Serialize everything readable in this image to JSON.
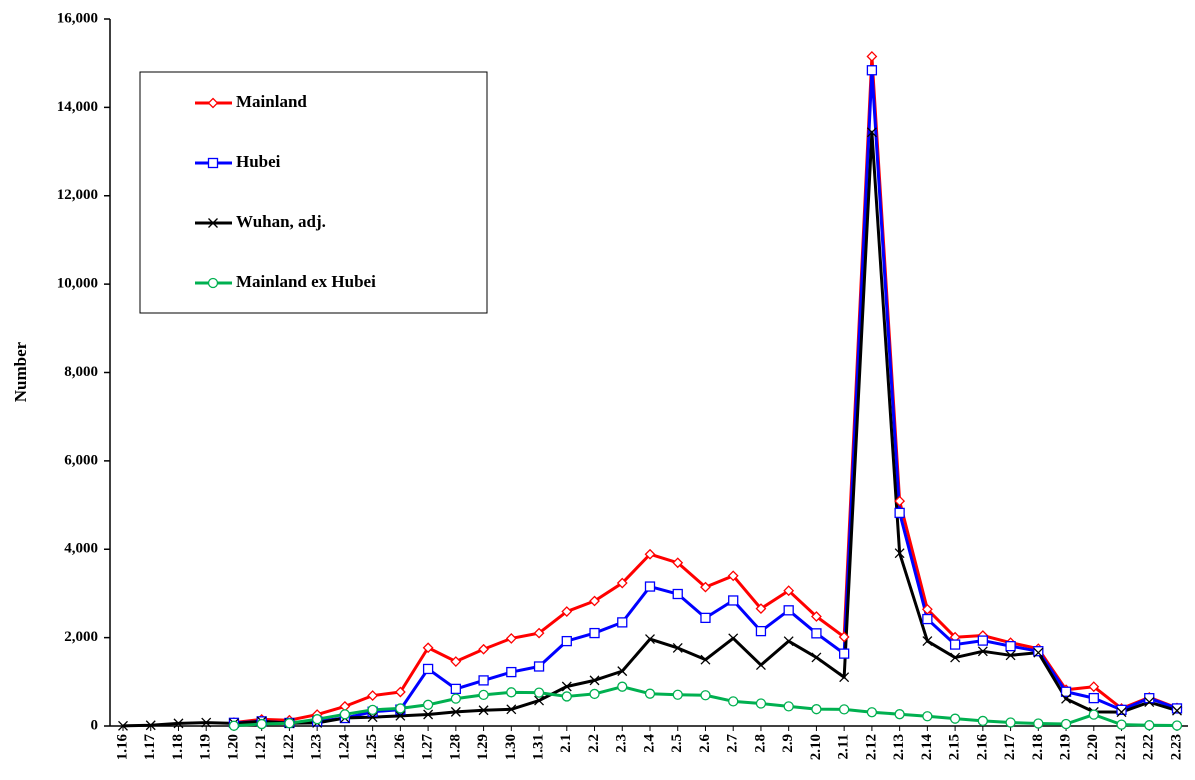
{
  "chart_data": {
    "type": "line",
    "y_label": "Number",
    "categories": [
      "1.16",
      "1.17",
      "1.18",
      "1.19",
      "1.20",
      "1.21",
      "1.22",
      "1.23",
      "1.24",
      "1.25",
      "1.26",
      "1.27",
      "1.28",
      "1.29",
      "1.30",
      "1.31",
      "2.1",
      "2.2",
      "2.3",
      "2.4",
      "2.5",
      "2.6",
      "2.7",
      "2.8",
      "2.9",
      "2.10",
      "2.11",
      "2.12",
      "2.13",
      "2.14",
      "2.15",
      "2.16",
      "2.17",
      "2.18",
      "2.19",
      "2.20",
      "2.21",
      "2.22",
      "2.23"
    ],
    "series": [
      {
        "name": "Mainland",
        "color": "#ff0000",
        "marker": "diamond",
        "values": [
          null,
          null,
          null,
          null,
          77,
          149,
          131,
          259,
          444,
          688,
          769,
          1771,
          1459,
          1737,
          1982,
          2102,
          2590,
          2829,
          3235,
          3887,
          3694,
          3143,
          3399,
          2656,
          3062,
          2478,
          2015,
          15152,
          5090,
          2641,
          2009,
          2048,
          1886,
          1749,
          820,
          889,
          397,
          648,
          409
        ]
      },
      {
        "name": "Hubei",
        "color": "#0000ff",
        "marker": "square",
        "values": [
          null,
          null,
          null,
          null,
          72,
          105,
          69,
          105,
          180,
          323,
          371,
          1291,
          840,
          1032,
          1220,
          1347,
          1921,
          2103,
          2345,
          3156,
          2987,
          2447,
          2841,
          2147,
          2618,
          2097,
          1638,
          14840,
          4823,
          2420,
          1843,
          1933,
          1807,
          1693,
          775,
          631,
          366,
          630,
          398
        ]
      },
      {
        "name": "Wuhan, adj.",
        "color": "#000000",
        "marker": "x",
        "values": [
          4,
          17,
          59,
          77,
          60,
          105,
          62,
          70,
          180,
          200,
          230,
          260,
          320,
          356,
          378,
          576,
          894,
          1033,
          1242,
          1967,
          1766,
          1501,
          1985,
          1379,
          1920,
          1552,
          1104,
          13436,
          3910,
          1923,
          1548,
          1690,
          1600,
          1660,
          615,
          319,
          314,
          541,
          348
        ]
      },
      {
        "name": "Mainland ex Hubei",
        "color": "#00b050",
        "marker": "circle",
        "values": [
          null,
          null,
          null,
          null,
          5,
          44,
          62,
          154,
          264,
          365,
          398,
          480,
          619,
          705,
          762,
          755,
          669,
          726,
          890,
          731,
          707,
          696,
          558,
          509,
          444,
          381,
          377,
          312,
          267,
          221,
          166,
          115,
          79,
          56,
          45,
          258,
          31,
          18,
          11
        ]
      }
    ],
    "ylim": [
      0,
      16000
    ],
    "yticks": [
      0,
      {
        "value": 2000,
        "label": "2,000"
      },
      {
        "value": 4000,
        "label": "4,000"
      },
      {
        "value": 6000,
        "label": "6,000"
      },
      {
        "value": 8000,
        "label": "8,000"
      },
      {
        "value": 10000,
        "label": "10,000"
      },
      {
        "value": 12000,
        "label": "12,000"
      },
      {
        "value": 14000,
        "label": "14,000"
      },
      {
        "value": 16000,
        "label": "16,000"
      }
    ],
    "grid": false,
    "legend": "upper left"
  }
}
